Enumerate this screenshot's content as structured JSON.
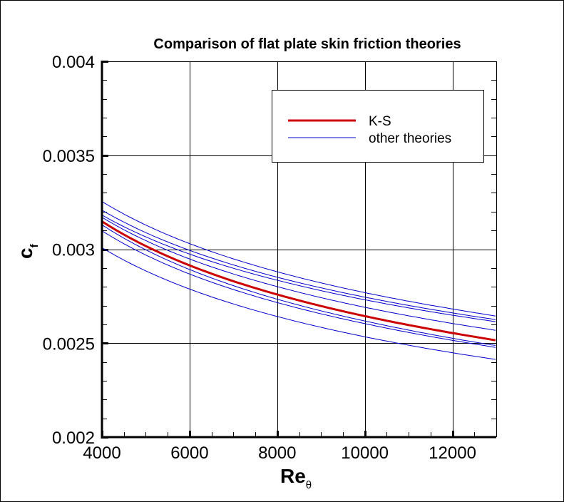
{
  "chart_data": {
    "type": "line",
    "title": "Comparison of flat plate skin friction theories",
    "xlabel": "Re",
    "xlabel_subscript": "θ",
    "ylabel": "c",
    "ylabel_subscript": "f",
    "xlim": [
      4000,
      13000
    ],
    "ylim": [
      0.002,
      0.004
    ],
    "xticks": [
      4000,
      6000,
      8000,
      10000,
      12000
    ],
    "xtick_labels": [
      "4000",
      "6000",
      "8000",
      "10000",
      "12000"
    ],
    "yticks": [
      0.002,
      0.0025,
      0.003,
      0.0035,
      0.004
    ],
    "ytick_labels": [
      "0.002",
      "0.0025",
      "0.003",
      "0.0035",
      "0.004"
    ],
    "grid": true,
    "legend_placement": "top-right",
    "legend": [
      {
        "label": "K-S",
        "color": "#cc0000"
      },
      {
        "label": "other theories",
        "color": "#0000cc"
      }
    ],
    "x": [
      4000,
      6000,
      8000,
      10000,
      12000,
      13000
    ],
    "series": [
      {
        "name": "K-S",
        "color": "#cc0000",
        "values": [
          0.003148,
          0.002914,
          0.002759,
          0.002644,
          0.002554,
          0.002515
        ]
      },
      {
        "color": "#0000cc",
        "values": [
          0.003254,
          0.00303,
          0.00288,
          0.002769,
          0.002682,
          0.002644
        ]
      },
      {
        "color": "#0000cc",
        "values": [
          0.003208,
          0.002994,
          0.002851,
          0.002745,
          0.002661,
          0.002625
        ]
      },
      {
        "color": "#0000cc",
        "values": [
          0.003182,
          0.002974,
          0.002835,
          0.002731,
          0.002649,
          0.002614
        ]
      },
      {
        "color": "#0000cc",
        "values": [
          0.00317,
          0.002948,
          0.002801,
          0.002691,
          0.002605,
          0.002568
        ]
      },
      {
        "color": "#0000cc",
        "values": [
          0.00313,
          0.002892,
          0.002734,
          0.002618,
          0.002526,
          0.002487
        ]
      },
      {
        "color": "#0000cc",
        "values": [
          0.003098,
          0.002868,
          0.002716,
          0.002604,
          0.002515,
          0.002477
        ]
      },
      {
        "color": "#0000cc",
        "values": [
          0.003008,
          0.002788,
          0.002642,
          0.002534,
          0.002449,
          0.002413
        ]
      }
    ]
  }
}
